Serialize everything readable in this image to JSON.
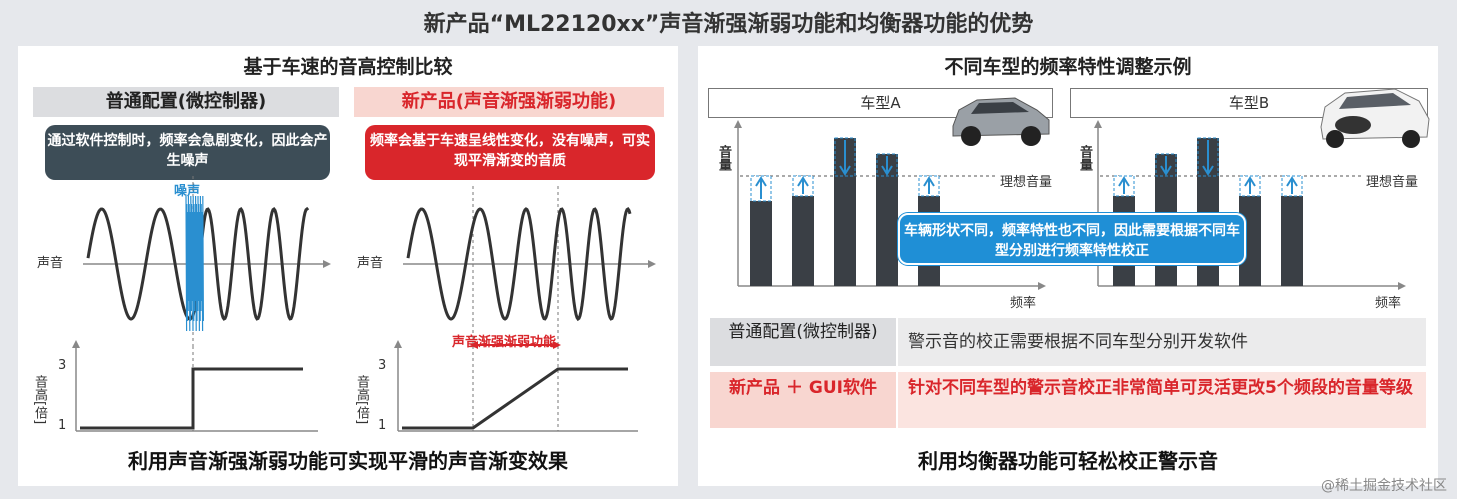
{
  "title": "新产品“ML22120xx”声音渐强渐弱功能和均衡器功能的优势",
  "left": {
    "subtitle": "基于车速的音高控制比较",
    "col1_label": "普通配置(微控制器)",
    "col2_label": "新产品(声音渐强渐弱功能)",
    "callout1": "通过软件控制时，频率会急剧变化，因此会产生噪声",
    "callout2": "频率会基于车速呈线性变化，没有噪声，可实现平滑渐变的音质",
    "noise_label": "噪声",
    "sound_label": "声音",
    "pitch_axis": "音高[倍]",
    "tick_3": "3",
    "tick_1": "1",
    "fade_label": "声音渐强渐弱功能",
    "bottom": "利用声音渐强渐弱功能可实现平滑的声音渐变效果"
  },
  "right": {
    "subtitle": "不同车型的频率特性调整示例",
    "car_a": "车型A",
    "car_b": "车型B",
    "volume": "音量",
    "ideal": "理想音量",
    "freq": "频率",
    "callout": "车辆形状不同，频率特性也不同，因此需要根据不同车型分别进行频率特性校正",
    "row1_head": "普通配置(微控制器)",
    "row1_text": "警示音的校正需要根据不同车型分别开发软件",
    "row2_head": "新产品 ＋ GUI软件",
    "row2_text": "针对不同车型的警示音校正非常简单可灵活更改5个频段的音量等级",
    "bottom": "利用均衡器功能可轻松校正警示音"
  },
  "watermark": "@稀土掘金技术社区",
  "colors": {
    "accent_red": "#d9262b",
    "pink": "#f8d6d0",
    "gray_box": "#dcdde0",
    "dark_callout": "#3d4d57",
    "blue_callout": "#1f8fd6",
    "bar": "#3a3f45",
    "wave_blue": "#2a8fd0"
  }
}
